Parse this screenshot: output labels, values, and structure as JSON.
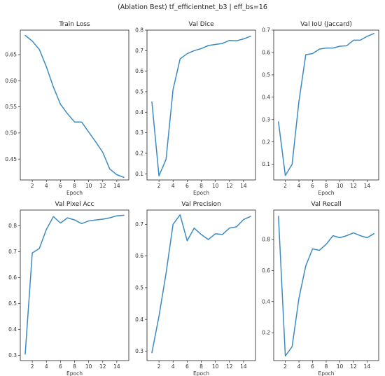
{
  "figure": {
    "suptitle": "(Ablation Best) tf_efficientnet_b3 | eff_bs=16"
  },
  "line_color": "#3b8bc2",
  "chart_data": [
    {
      "type": "line",
      "title": "Train Loss",
      "xlabel": "Epoch",
      "ylabel": "",
      "x": [
        1,
        2,
        3,
        4,
        5,
        6,
        7,
        8,
        9,
        10,
        11,
        12,
        13,
        14,
        15
      ],
      "values": [
        0.687,
        0.676,
        0.66,
        0.627,
        0.588,
        0.555,
        0.537,
        0.521,
        0.521,
        0.502,
        0.483,
        0.463,
        0.431,
        0.42,
        0.415
      ],
      "xlim": [
        0.3,
        15.7
      ],
      "ylim": [
        0.41,
        0.697
      ],
      "xticks": [
        2,
        4,
        6,
        8,
        10,
        12,
        14
      ],
      "yticks": [
        0.45,
        0.5,
        0.55,
        0.6,
        0.65
      ],
      "ytick_labels": [
        "0.45",
        "0.50",
        "0.55",
        "0.60",
        "0.65"
      ]
    },
    {
      "type": "line",
      "title": "Val Dice",
      "xlabel": "Epoch",
      "ylabel": "",
      "x": [
        1,
        2,
        3,
        4,
        5,
        6,
        7,
        8,
        9,
        10,
        11,
        12,
        13,
        14,
        15
      ],
      "values": [
        0.45,
        0.09,
        0.17,
        0.51,
        0.66,
        0.685,
        0.7,
        0.71,
        0.725,
        0.73,
        0.735,
        0.75,
        0.748,
        0.757,
        0.77
      ],
      "xlim": [
        0.3,
        15.7
      ],
      "ylim": [
        0.07,
        0.8
      ],
      "xticks": [
        2,
        4,
        6,
        8,
        10,
        12,
        14
      ],
      "yticks": [
        0.1,
        0.2,
        0.3,
        0.4,
        0.5,
        0.6,
        0.7,
        0.8
      ],
      "ytick_labels": [
        "0.1",
        "0.2",
        "0.3",
        "0.4",
        "0.5",
        "0.6",
        "0.7",
        "0.8"
      ]
    },
    {
      "type": "line",
      "title": "Val IoU (Jaccard)",
      "xlabel": "Epoch",
      "ylabel": "",
      "x": [
        1,
        2,
        3,
        4,
        5,
        6,
        7,
        8,
        9,
        10,
        11,
        12,
        13,
        14,
        15
      ],
      "values": [
        0.29,
        0.05,
        0.1,
        0.38,
        0.59,
        0.595,
        0.615,
        0.62,
        0.62,
        0.628,
        0.63,
        0.655,
        0.655,
        0.672,
        0.685
      ],
      "xlim": [
        0.3,
        15.7
      ],
      "ylim": [
        0.03,
        0.7
      ],
      "xticks": [
        2,
        4,
        6,
        8,
        10,
        12,
        14
      ],
      "yticks": [
        0.1,
        0.2,
        0.3,
        0.4,
        0.5,
        0.6,
        0.7
      ],
      "ytick_labels": [
        "0.1",
        "0.2",
        "0.3",
        "0.4",
        "0.5",
        "0.6",
        "0.7"
      ]
    },
    {
      "type": "line",
      "title": "Val Pixel Acc",
      "xlabel": "Epoch",
      "ylabel": "",
      "x": [
        1,
        2,
        3,
        4,
        5,
        6,
        7,
        8,
        9,
        10,
        11,
        12,
        13,
        14,
        15
      ],
      "values": [
        0.305,
        0.695,
        0.712,
        0.785,
        0.835,
        0.81,
        0.83,
        0.822,
        0.808,
        0.818,
        0.822,
        0.825,
        0.83,
        0.838,
        0.84
      ],
      "xlim": [
        0.3,
        15.7
      ],
      "ylim": [
        0.28,
        0.86
      ],
      "xticks": [
        2,
        4,
        6,
        8,
        10,
        12,
        14
      ],
      "yticks": [
        0.3,
        0.4,
        0.5,
        0.6,
        0.7,
        0.8
      ],
      "ytick_labels": [
        "0.3",
        "0.4",
        "0.5",
        "0.6",
        "0.7",
        "0.8"
      ]
    },
    {
      "type": "line",
      "title": "Val Precision",
      "xlabel": "Epoch",
      "ylabel": "",
      "x": [
        1,
        2,
        3,
        4,
        5,
        6,
        7,
        8,
        9,
        10,
        11,
        12,
        13,
        14,
        15
      ],
      "values": [
        0.295,
        0.41,
        0.545,
        0.7,
        0.73,
        0.648,
        0.688,
        0.668,
        0.652,
        0.67,
        0.668,
        0.688,
        0.692,
        0.715,
        0.725
      ],
      "xlim": [
        0.3,
        15.7
      ],
      "ylim": [
        0.27,
        0.745
      ],
      "xticks": [
        2,
        4,
        6,
        8,
        10,
        12,
        14
      ],
      "yticks": [
        0.3,
        0.4,
        0.5,
        0.6,
        0.7
      ],
      "ytick_labels": [
        "0.3",
        "0.4",
        "0.5",
        "0.6",
        "0.7"
      ]
    },
    {
      "type": "line",
      "title": "Val Recall",
      "xlabel": "Epoch",
      "ylabel": "",
      "x": [
        1,
        2,
        3,
        4,
        5,
        6,
        7,
        8,
        9,
        10,
        11,
        12,
        13,
        14,
        15
      ],
      "values": [
        0.95,
        0.05,
        0.11,
        0.42,
        0.63,
        0.74,
        0.73,
        0.77,
        0.825,
        0.812,
        0.825,
        0.843,
        0.825,
        0.812,
        0.838
      ],
      "xlim": [
        0.3,
        15.7
      ],
      "ylim": [
        0.02,
        0.99
      ],
      "xticks": [
        2,
        4,
        6,
        8,
        10,
        12,
        14
      ],
      "yticks": [
        0.2,
        0.4,
        0.6,
        0.8
      ],
      "ytick_labels": [
        "0.2",
        "0.4",
        "0.6",
        "0.8"
      ]
    }
  ]
}
